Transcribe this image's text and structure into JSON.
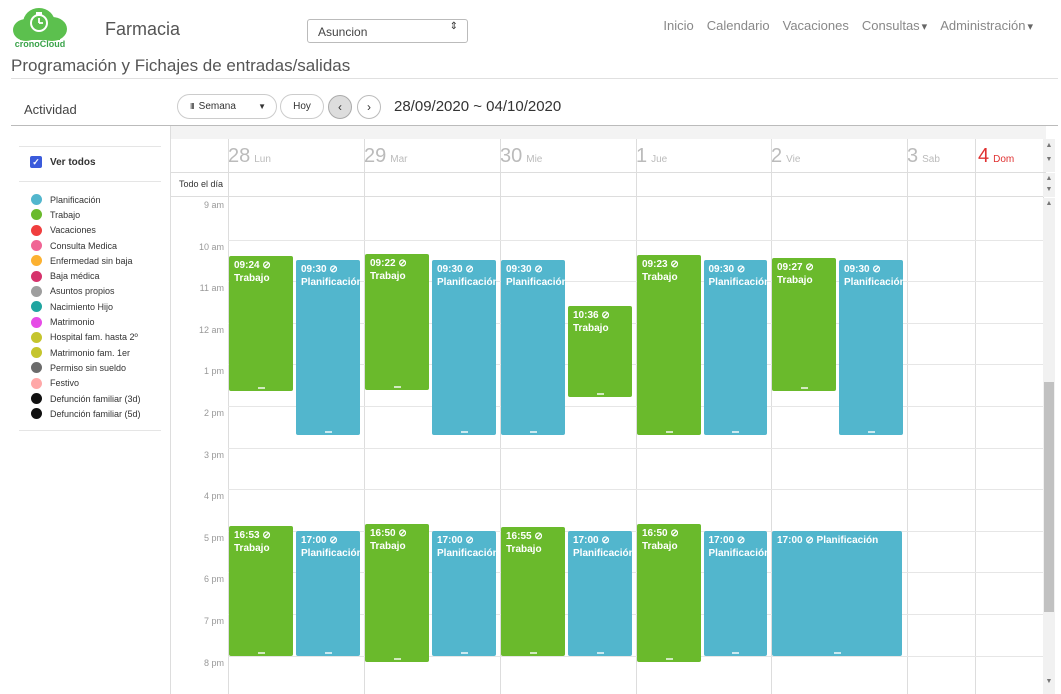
{
  "brand": {
    "logo_text": "cronoCloud",
    "app_name": "Farmacia"
  },
  "location_select": {
    "value": "Asuncion",
    "arrow": "⇕"
  },
  "nav": {
    "items": [
      "Inicio",
      "Calendario",
      "Vacaciones",
      "Consultas",
      "Administración"
    ],
    "dropdown_items": [
      3,
      4
    ]
  },
  "page_title": "Programación y Fichajes de entradas/salidas",
  "toolbar": {
    "activity_label": "Actividad",
    "view_label": "Semana",
    "view_icon": "III",
    "today_label": "Hoy",
    "prev_icon": "‹",
    "next_icon": "›",
    "date_range": "28/09/2020 ~ 04/10/2020"
  },
  "sidebar": {
    "select_all_label": "Ver todos",
    "legend": [
      {
        "label": "Planificación",
        "color": "#52b6cd"
      },
      {
        "label": "Trabajo",
        "color": "#6aba2c"
      },
      {
        "label": "Vacaciones",
        "color": "#f03e3e"
      },
      {
        "label": "Consulta Medica",
        "color": "#f06595"
      },
      {
        "label": "Enfermedad sin baja",
        "color": "#fcb131"
      },
      {
        "label": "Baja médica",
        "color": "#d6336c"
      },
      {
        "label": "Asuntos propios",
        "color": "#9e9e9e"
      },
      {
        "label": "Nacimiento Hijo",
        "color": "#20a5a0"
      },
      {
        "label": "Matrimonio",
        "color": "#e64ce6"
      },
      {
        "label": "Hospital fam. hasta 2º",
        "color": "#c5c52d"
      },
      {
        "label": "Matrimonio fam. 1er",
        "color": "#c5c52d"
      },
      {
        "label": "Permiso sin sueldo",
        "color": "#6b6b6b"
      },
      {
        "label": "Festivo",
        "color": "#ffa8a8"
      },
      {
        "label": "Defunción familiar (3d)",
        "color": "#111111"
      },
      {
        "label": "Defunción familiar (5d)",
        "color": "#111111"
      }
    ]
  },
  "calendar": {
    "all_day_label": "Todo el día",
    "days": [
      {
        "num": "28",
        "name": "Lun"
      },
      {
        "num": "29",
        "name": "Mar"
      },
      {
        "num": "30",
        "name": "Mie"
      },
      {
        "num": "1",
        "name": "Jue"
      },
      {
        "num": "2",
        "name": "Vie"
      },
      {
        "num": "3",
        "name": "Sab"
      },
      {
        "num": "4",
        "name": "Dom",
        "highlight": true
      }
    ],
    "time_labels": [
      "9 am",
      "10 am",
      "11 am",
      "12 am",
      "1 pm",
      "2 pm",
      "3 pm",
      "4 pm",
      "5 pm",
      "6 pm",
      "7 pm",
      "8 pm"
    ],
    "events": [
      {
        "day": 0,
        "col": 0,
        "time": "09:24",
        "title": "Trabajo",
        "type": "green",
        "start": 10.4,
        "end": 13.65
      },
      {
        "day": 0,
        "col": 1,
        "time": "09:30",
        "title": "Planificación",
        "type": "blue",
        "start": 10.5,
        "end": 14.7
      },
      {
        "day": 1,
        "col": 0,
        "time": "09:22",
        "title": "Trabajo",
        "type": "green",
        "start": 10.35,
        "end": 13.62
      },
      {
        "day": 1,
        "col": 1,
        "time": "09:30",
        "title": "Planificación",
        "type": "blue",
        "start": 10.5,
        "end": 14.7
      },
      {
        "day": 2,
        "col": 0,
        "time": "09:30",
        "title": "Planificación",
        "type": "blue",
        "start": 10.5,
        "end": 14.7
      },
      {
        "day": 2,
        "col": 1,
        "time": "10:36",
        "title": "Trabajo",
        "type": "green",
        "start": 11.6,
        "end": 13.78
      },
      {
        "day": 3,
        "col": 0,
        "time": "09:23",
        "title": "Trabajo",
        "type": "green",
        "start": 10.38,
        "end": 14.7
      },
      {
        "day": 3,
        "col": 1,
        "time": "09:30",
        "title": "Planificación",
        "type": "blue",
        "start": 10.5,
        "end": 14.7
      },
      {
        "day": 4,
        "col": 0,
        "time": "09:27",
        "title": "Trabajo",
        "type": "green",
        "start": 10.45,
        "end": 13.65
      },
      {
        "day": 4,
        "col": 1,
        "time": "09:30",
        "title": "Planificación",
        "type": "blue",
        "start": 10.5,
        "end": 14.7
      },
      {
        "day": 0,
        "col": 0,
        "time": "16:53",
        "title": "Trabajo",
        "type": "green",
        "start": 16.88,
        "end": 20.0
      },
      {
        "day": 0,
        "col": 1,
        "time": "17:00",
        "title": "Planificación",
        "type": "blue",
        "start": 17.0,
        "end": 20.0
      },
      {
        "day": 1,
        "col": 0,
        "time": "16:50",
        "title": "Trabajo",
        "type": "green",
        "start": 16.83,
        "end": 20.15
      },
      {
        "day": 1,
        "col": 1,
        "time": "17:00",
        "title": "Planificación",
        "type": "blue",
        "start": 17.0,
        "end": 20.0
      },
      {
        "day": 2,
        "col": 0,
        "time": "16:55",
        "title": "Trabajo",
        "type": "green",
        "start": 16.92,
        "end": 20.0
      },
      {
        "day": 2,
        "col": 1,
        "time": "17:00",
        "title": "Planificación",
        "type": "blue",
        "start": 17.0,
        "end": 20.0
      },
      {
        "day": 3,
        "col": 0,
        "time": "16:50",
        "title": "Trabajo",
        "type": "green",
        "start": 16.83,
        "end": 20.15
      },
      {
        "day": 3,
        "col": 1,
        "time": "17:00",
        "title": "Planificación",
        "type": "blue",
        "start": 17.0,
        "end": 20.0
      },
      {
        "day": 4,
        "col": "full",
        "time": "17:00",
        "title": "Planificación",
        "type": "blue",
        "start": 17.0,
        "end": 20.0,
        "inline": true
      }
    ]
  }
}
